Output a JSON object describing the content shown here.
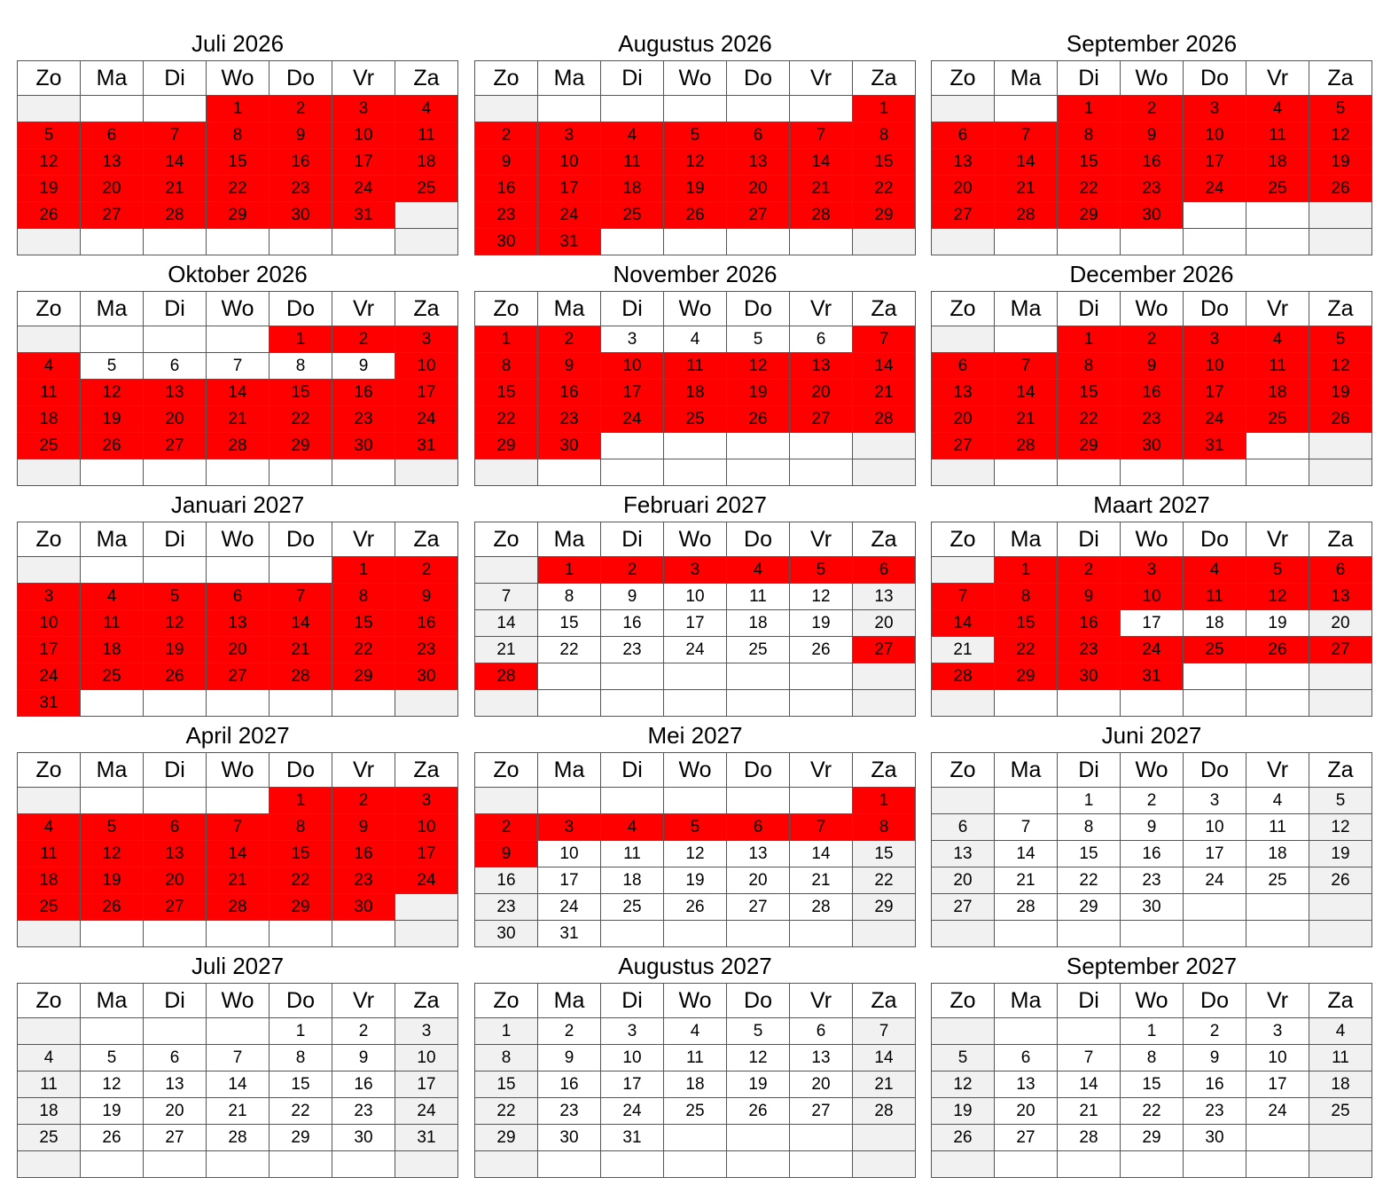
{
  "weekday_headers": [
    "Zo",
    "Ma",
    "Di",
    "Wo",
    "Do",
    "Vr",
    "Za"
  ],
  "colors": {
    "booked": "#ff0000",
    "weekend_empty": "#f1f1f1",
    "free": "#ffffff",
    "border": "#555555"
  },
  "months": [
    {
      "title": "Juli 2026",
      "start_weekday": 3,
      "days": 31,
      "booked_ranges": [
        [
          1,
          31
        ]
      ]
    },
    {
      "title": "Augustus 2026",
      "start_weekday": 6,
      "days": 31,
      "booked_ranges": [
        [
          1,
          31
        ]
      ]
    },
    {
      "title": "September 2026",
      "start_weekday": 2,
      "days": 30,
      "booked_ranges": [
        [
          1,
          30
        ]
      ]
    },
    {
      "title": "Oktober 2026",
      "start_weekday": 4,
      "days": 31,
      "booked_ranges": [
        [
          1,
          4
        ],
        [
          10,
          31
        ]
      ]
    },
    {
      "title": "November 2026",
      "start_weekday": 0,
      "days": 30,
      "booked_ranges": [
        [
          1,
          2
        ],
        [
          7,
          30
        ]
      ]
    },
    {
      "title": "December 2026",
      "start_weekday": 2,
      "days": 31,
      "booked_ranges": [
        [
          1,
          31
        ]
      ]
    },
    {
      "title": "Januari 2027",
      "start_weekday": 5,
      "days": 31,
      "booked_ranges": [
        [
          1,
          31
        ]
      ]
    },
    {
      "title": "Februari 2027",
      "start_weekday": 1,
      "days": 28,
      "booked_ranges": [
        [
          1,
          6
        ],
        [
          27,
          28
        ]
      ]
    },
    {
      "title": "Maart 2027",
      "start_weekday": 1,
      "days": 31,
      "booked_ranges": [
        [
          1,
          16
        ],
        [
          22,
          31
        ]
      ]
    },
    {
      "title": "April 2027",
      "start_weekday": 4,
      "days": 30,
      "booked_ranges": [
        [
          1,
          30
        ]
      ]
    },
    {
      "title": "Mei 2027",
      "start_weekday": 6,
      "days": 31,
      "booked_ranges": [
        [
          1,
          9
        ]
      ]
    },
    {
      "title": "Juni 2027",
      "start_weekday": 2,
      "days": 30,
      "booked_ranges": []
    },
    {
      "title": "Juli 2027",
      "start_weekday": 4,
      "days": 31,
      "booked_ranges": []
    },
    {
      "title": "Augustus 2027",
      "start_weekday": 0,
      "days": 31,
      "booked_ranges": []
    },
    {
      "title": "September 2027",
      "start_weekday": 3,
      "days": 30,
      "booked_ranges": []
    }
  ]
}
